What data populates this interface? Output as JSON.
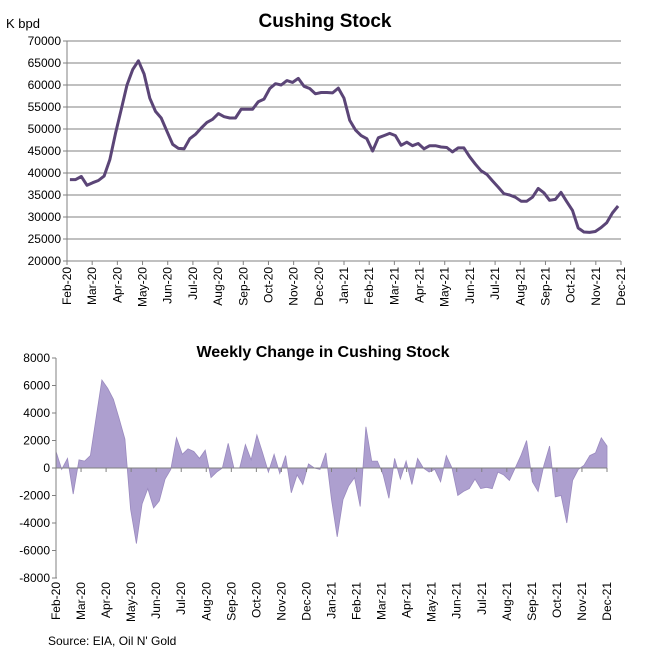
{
  "source": "Source: EIA, Oil N' Gold",
  "colors": {
    "line": "#5b4577",
    "area": "#ad9fcf",
    "grid": "#808080",
    "axis": "#808080",
    "text": "#000000"
  },
  "chart_data": [
    {
      "type": "line",
      "title": "Cushing Stock",
      "ylabel": "K bpd",
      "xlabel": "",
      "ylim": [
        20000,
        70000
      ],
      "yticks": [
        20000,
        25000,
        30000,
        35000,
        40000,
        45000,
        50000,
        55000,
        60000,
        65000,
        70000
      ],
      "ytick_labels": [
        "20000",
        "25000",
        "30000",
        "35000",
        "40000",
        "45000",
        "50000",
        "55000",
        "60000",
        "65000",
        "70000"
      ],
      "grid": true,
      "x_tick_labels": [
        "Feb-20",
        "Mar-20",
        "Apr-20",
        "May-20",
        "Jun-20",
        "Jul-20",
        "Aug-20",
        "Sep-20",
        "Oct-20",
        "Nov-20",
        "Dec-20",
        "Jan-21",
        "Feb-21",
        "Mar-21",
        "Apr-21",
        "May-21",
        "Jun-21",
        "Jul-21",
        "Aug-21",
        "Sep-21",
        "Oct-21",
        "Nov-21",
        "Dec-21"
      ],
      "series": [
        {
          "name": "Cushing Stock",
          "values": [
            38500,
            38500,
            39200,
            37200,
            37800,
            38300,
            39300,
            43000,
            49000,
            54500,
            60000,
            63500,
            65500,
            62500,
            57000,
            54000,
            52500,
            49500,
            46500,
            45600,
            45500,
            47800,
            48800,
            50200,
            51500,
            52200,
            53500,
            52800,
            52500,
            52500,
            54500,
            54500,
            54500,
            56200,
            56800,
            59200,
            60300,
            60000,
            61000,
            60600,
            61500,
            59700,
            59200,
            58000,
            58300,
            58300,
            58200,
            59300,
            57000,
            52000,
            49800,
            48500,
            47800,
            45000,
            48000,
            48500,
            49000,
            48500,
            46300,
            47000,
            46200,
            46700,
            45500,
            46200,
            46200,
            45900,
            45800,
            44800,
            45700,
            45700,
            43700,
            42000,
            40500,
            39700,
            38200,
            36800,
            35300,
            35000,
            34500,
            33600,
            33600,
            34500,
            36500,
            35500,
            33800,
            34000,
            35600,
            33500,
            31500,
            27500,
            26600,
            26500,
            26700,
            27600,
            28700,
            30900,
            32500
          ]
        }
      ]
    },
    {
      "type": "area",
      "title": "Weekly Change in Cushing Stock",
      "ylabel": "",
      "xlabel": "",
      "ylim": [
        -8000,
        8000
      ],
      "yticks": [
        -8000,
        -6000,
        -4000,
        -2000,
        0,
        2000,
        4000,
        6000,
        8000
      ],
      "ytick_labels": [
        "-8000",
        "-6000",
        "-4000",
        "-2000",
        "0",
        "2000",
        "4000",
        "6000",
        "8000"
      ],
      "grid": false,
      "x_tick_labels": [
        "Feb-20",
        "Mar-20",
        "Apr-20",
        "May-20",
        "Jun-20",
        "Jul-20",
        "Aug-20",
        "Sep-20",
        "Oct-20",
        "Nov-20",
        "Dec-20",
        "Jan-21",
        "Feb-21",
        "Mar-21",
        "Apr-21",
        "May-21",
        "Jun-21",
        "Jul-21",
        "Aug-21",
        "Sep-21",
        "Oct-21",
        "Nov-21",
        "Dec-21"
      ],
      "series": [
        {
          "name": "Weekly Change",
          "values": [
            1200,
            -100,
            700,
            -1900,
            600,
            500,
            900,
            3700,
            6400,
            5800,
            5000,
            3600,
            2100,
            -3000,
            -5500,
            -2600,
            -1500,
            -2900,
            -2400,
            -800,
            -100,
            2200,
            1000,
            1400,
            1200,
            700,
            1300,
            -700,
            -300,
            0,
            1800,
            0,
            0,
            1700,
            600,
            2400,
            1100,
            -300,
            1000,
            -400,
            900,
            -1800,
            -500,
            -1200,
            300,
            0,
            -100,
            1100,
            -2300,
            -5000,
            -2300,
            -1300,
            -700,
            -2800,
            3000,
            500,
            500,
            -500,
            -2200,
            700,
            -800,
            500,
            -1200,
            700,
            0,
            -300,
            -100,
            -1000,
            900,
            0,
            -2000,
            -1700,
            -1500,
            -800,
            -1500,
            -1400,
            -1500,
            -300,
            -500,
            -900,
            0,
            900,
            2000,
            -1000,
            -1700,
            200,
            1600,
            -2100,
            -2000,
            -4000,
            -900,
            -100,
            200,
            900,
            1100,
            2200,
            1600
          ]
        }
      ]
    }
  ]
}
